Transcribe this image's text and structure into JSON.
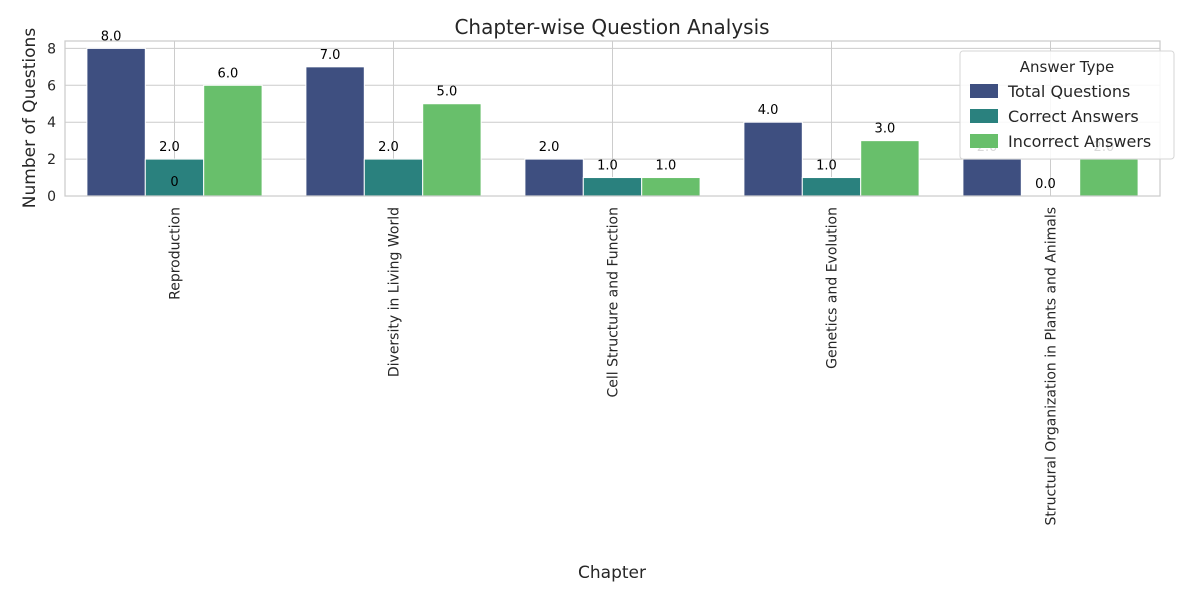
{
  "chart_data": {
    "type": "bar",
    "title": "Chapter-wise Question Analysis",
    "xlabel": "Chapter",
    "ylabel": "Number of Questions",
    "categories": [
      "Reproduction",
      "Diversity in Living World",
      "Cell Structure and Function",
      "Genetics and Evolution",
      "Structural Organization in Plants and Animals"
    ],
    "series": [
      {
        "name": "Total Questions",
        "values": [
          8,
          7,
          2,
          4,
          2
        ],
        "color": "#3e4f80"
      },
      {
        "name": "Correct Answers",
        "values": [
          2,
          2,
          1,
          1,
          0
        ],
        "color": "#2a817e"
      },
      {
        "name": "Incorrect Answers",
        "values": [
          6,
          5,
          1,
          3,
          2
        ],
        "color": "#68bf6b"
      }
    ],
    "data_labels": [
      [
        "8.0",
        "2.0",
        "6.0"
      ],
      [
        "7.0",
        "2.0",
        "5.0"
      ],
      [
        "2.0",
        "1.0",
        "1.0"
      ],
      [
        "4.0",
        "1.0",
        "3.0"
      ],
      [
        "2.0",
        "0.0",
        "2.0"
      ]
    ],
    "extra_label": "0",
    "ylim": [
      0,
      8.4
    ],
    "yticks": [
      "0",
      "2",
      "4",
      "6",
      "8"
    ],
    "grid": true,
    "legend": {
      "title": "Answer Type",
      "placement": "top-right"
    }
  }
}
